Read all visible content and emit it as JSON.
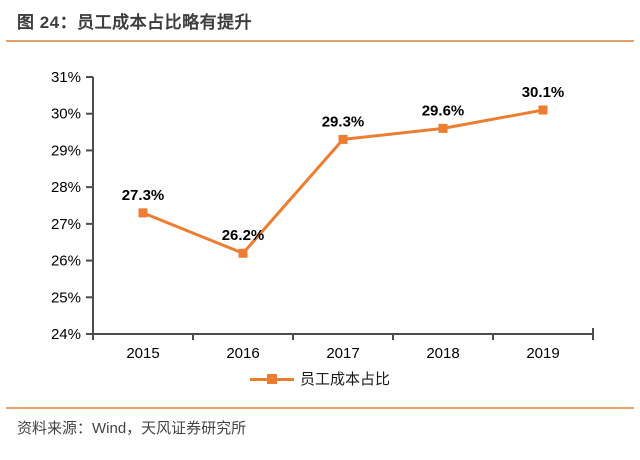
{
  "header": {
    "title": "图 24：员工成本占比略有提升"
  },
  "footer": {
    "source": "资料来源：Wind，天风证券研究所"
  },
  "colors": {
    "series": "#ED7D31",
    "rule": "#E5A26C",
    "axis": "#4D4D4D",
    "tick_text": "#000000",
    "title_text": "#3D3D3D",
    "source_text": "#444444"
  },
  "chart_data": {
    "type": "line",
    "title": "",
    "categories": [
      "2015",
      "2016",
      "2017",
      "2018",
      "2019"
    ],
    "series": [
      {
        "name": "员工成本占比",
        "values": [
          27.3,
          26.2,
          29.3,
          29.6,
          30.1
        ],
        "labels": [
          "27.3%",
          "26.2%",
          "29.3%",
          "29.6%",
          "30.1%"
        ]
      }
    ],
    "xlabel": "",
    "ylabel": "",
    "ylim": [
      24,
      31
    ],
    "ytick_step": 1,
    "ytick_suffix": "%",
    "ytick_labels": [
      "24%",
      "25%",
      "26%",
      "27%",
      "28%",
      "29%",
      "30%",
      "31%"
    ],
    "grid": false,
    "legend_position": "bottom",
    "marker": "square"
  }
}
